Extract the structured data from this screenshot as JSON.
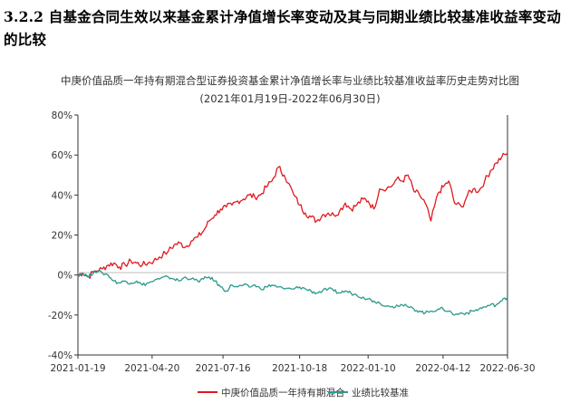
{
  "section_heading": "3.2.2 自基金合同生效以来基金累计净值增长率变动及其与同期业绩比较基准收益率变动的比较",
  "chart_data": {
    "type": "line",
    "title": "中庚价值品质一年持有期混合型证券投资基金累计净值增长率与业绩比较基准收益率历史走势对比图",
    "subtitle": "(2021年01月19日-2022年06月30日)",
    "xlabel": "",
    "ylabel": "",
    "x_ticks": [
      "2021-01-19",
      "2021-04-20",
      "2021-07-16",
      "2021-10-18",
      "2022-01-10",
      "2022-04-12",
      "2022-06-30"
    ],
    "y_ticks": [
      "80%",
      "60%",
      "40%",
      "20%",
      "0%",
      "-20%",
      "-40%"
    ],
    "ylim": [
      -40,
      80
    ],
    "grid": false,
    "legend_position": "bottom",
    "x": [
      "2021-01-19",
      "2021-01-25",
      "2021-02-01",
      "2021-02-08",
      "2021-02-18",
      "2021-02-25",
      "2021-03-04",
      "2021-03-11",
      "2021-03-18",
      "2021-03-25",
      "2021-04-01",
      "2021-04-08",
      "2021-04-15",
      "2021-04-22",
      "2021-04-29",
      "2021-05-10",
      "2021-05-17",
      "2021-05-24",
      "2021-05-31",
      "2021-06-07",
      "2021-06-15",
      "2021-06-22",
      "2021-06-29",
      "2021-07-06",
      "2021-07-13",
      "2021-07-20",
      "2021-07-27",
      "2021-08-03",
      "2021-08-10",
      "2021-08-17",
      "2021-08-24",
      "2021-08-31",
      "2021-09-07",
      "2021-09-14",
      "2021-09-22",
      "2021-09-29",
      "2021-10-11",
      "2021-10-18",
      "2021-10-25",
      "2021-11-01",
      "2021-11-08",
      "2021-11-15",
      "2021-11-22",
      "2021-11-29",
      "2021-12-06",
      "2021-12-13",
      "2021-12-20",
      "2021-12-27",
      "2022-01-04",
      "2022-01-10",
      "2022-01-17",
      "2022-01-24",
      "2022-02-07",
      "2022-02-14",
      "2022-02-21",
      "2022-02-28",
      "2022-03-07",
      "2022-03-14",
      "2022-03-21",
      "2022-03-28",
      "2022-04-06",
      "2022-04-12",
      "2022-04-19",
      "2022-04-26",
      "2022-05-05",
      "2022-05-12",
      "2022-05-19",
      "2022-05-26",
      "2022-06-02",
      "2022-06-09",
      "2022-06-16",
      "2022-06-23",
      "2022-06-30"
    ],
    "series": [
      {
        "name": "中庚价值品质一年持有期混合",
        "color": "#e0191d",
        "values": [
          0,
          1,
          -1,
          2,
          3,
          5,
          6,
          4,
          5,
          7,
          6,
          5,
          6,
          7,
          9,
          12,
          15,
          16,
          14,
          17,
          19,
          22,
          27,
          30,
          33,
          34,
          35,
          37,
          38,
          40,
          39,
          40,
          44,
          47,
          54,
          50,
          40,
          35,
          31,
          29,
          27,
          30,
          31,
          30,
          32,
          36,
          33,
          35,
          38,
          37,
          33,
          43,
          44,
          48,
          47,
          50,
          42,
          40,
          36,
          27,
          41,
          44,
          47,
          36,
          34,
          40,
          43,
          42,
          47,
          52,
          56,
          59,
          61
        ]
      },
      {
        "name": "业绩比较基准",
        "color": "#2a9a8c",
        "values": [
          0,
          1,
          -1,
          2,
          1,
          0,
          -3,
          -4,
          -3,
          -4,
          -3,
          -5,
          -4,
          -3,
          -2,
          -1,
          -2,
          -3,
          -1,
          -2,
          -3,
          -2,
          -1,
          -3,
          -6,
          -8,
          -5,
          -6,
          -5,
          -6,
          -5,
          -7,
          -6,
          -5,
          -6,
          -7,
          -7,
          -6,
          -7,
          -8,
          -9,
          -8,
          -7,
          -8,
          -9,
          -8,
          -9,
          -10,
          -11,
          -12,
          -13,
          -14,
          -16,
          -15,
          -15,
          -16,
          -17,
          -18,
          -19,
          -18,
          -17,
          -17,
          -18,
          -20,
          -19,
          -19,
          -18,
          -17,
          -16,
          -15,
          -15,
          -13,
          -11
        ]
      }
    ]
  }
}
